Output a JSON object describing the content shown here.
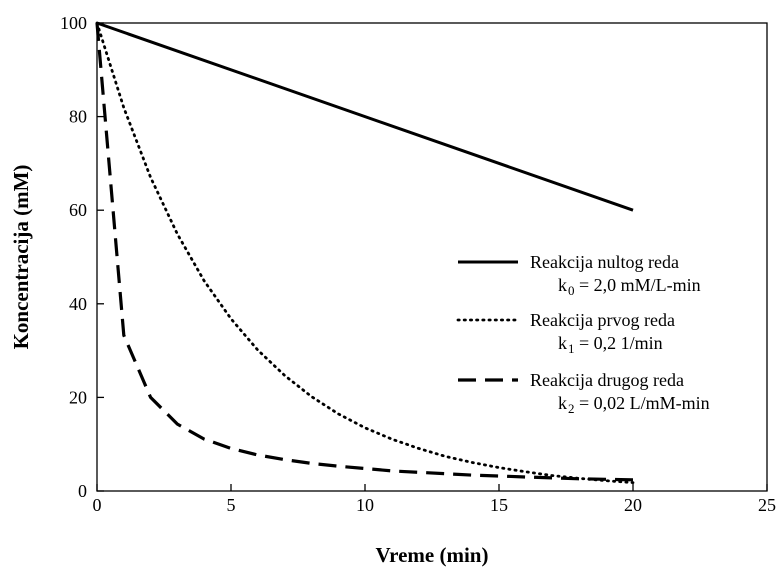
{
  "chart_data": {
    "type": "line",
    "xlabel": "Vreme (min)",
    "ylabel": "Koncentracija (mM)",
    "xlim": [
      0,
      25
    ],
    "ylim": [
      0,
      100
    ],
    "xticks": [
      "0",
      "5",
      "10",
      "15",
      "20",
      "25"
    ],
    "yticks": [
      "0",
      "20",
      "40",
      "60",
      "80",
      "100"
    ],
    "grid": false,
    "legend_position": "right",
    "series": [
      {
        "name": "Reakcija nultog reda",
        "rate_label": "0 = 2,0 mM/L-min",
        "line_style": "solid",
        "x": [
          0,
          20
        ],
        "y": [
          100,
          60
        ]
      },
      {
        "name": "Reakcija prvog reda",
        "rate_label": "1 = 0,2 1/min",
        "line_style": "dotted",
        "x": [
          0,
          1,
          2,
          3,
          4,
          5,
          6,
          7,
          8,
          9,
          10,
          11,
          12,
          13,
          14,
          15,
          16,
          17,
          18,
          19,
          20
        ],
        "y": [
          100,
          81.9,
          67.0,
          54.9,
          44.9,
          36.8,
          30.1,
          24.7,
          20.2,
          16.5,
          13.5,
          11.1,
          9.1,
          7.4,
          6.1,
          5.0,
          4.1,
          3.3,
          2.7,
          2.2,
          1.8
        ]
      },
      {
        "name": "Reakcija drugog reda",
        "rate_label": "2 = 0,02 L/mM-min",
        "line_style": "dashed",
        "x": [
          0,
          1,
          2,
          3,
          4,
          5,
          6,
          7,
          8,
          9,
          10,
          11,
          12,
          13,
          14,
          15,
          16,
          17,
          18,
          19,
          20
        ],
        "y": [
          100,
          33.3,
          20.0,
          14.3,
          11.1,
          9.1,
          7.7,
          6.7,
          5.9,
          5.3,
          4.8,
          4.3,
          4.0,
          3.7,
          3.4,
          3.2,
          3.0,
          2.8,
          2.6,
          2.5,
          2.4
        ]
      }
    ]
  }
}
